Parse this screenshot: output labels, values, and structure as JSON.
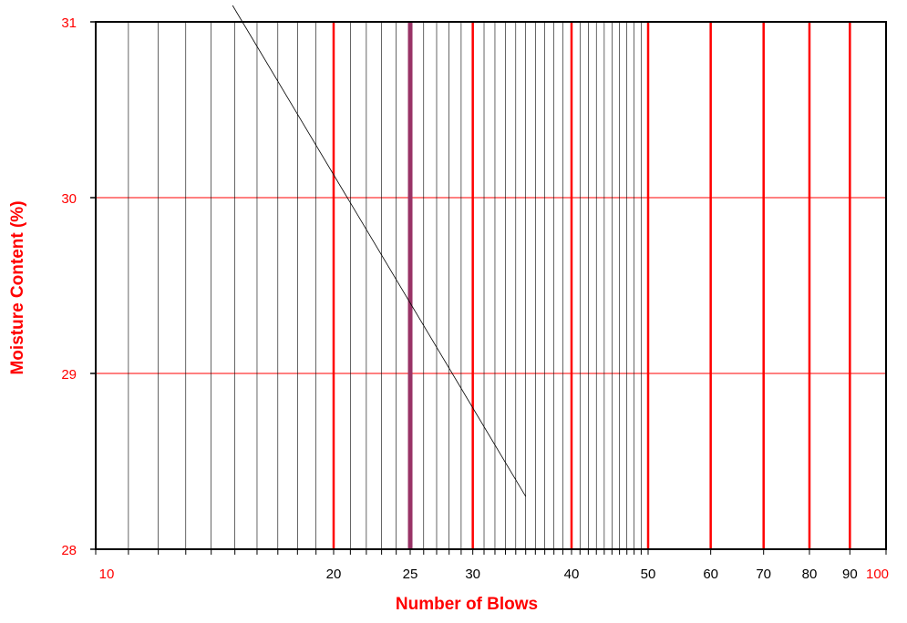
{
  "chart_data": {
    "type": "line",
    "xscale": "log",
    "xlim": [
      10,
      100
    ],
    "ylim": [
      28,
      31
    ],
    "xlabel": "Number of Blows",
    "ylabel": "Moisture Content (%)",
    "x_tick_labels": [
      {
        "value": 10,
        "label": "10",
        "color": "#ff0000"
      },
      {
        "value": 20,
        "label": "20",
        "color": "#000000"
      },
      {
        "value": 25,
        "label": "25",
        "color": "#000000"
      },
      {
        "value": 30,
        "label": "30",
        "color": "#000000"
      },
      {
        "value": 40,
        "label": "40",
        "color": "#000000"
      },
      {
        "value": 50,
        "label": "50",
        "color": "#000000"
      },
      {
        "value": 60,
        "label": "60",
        "color": "#000000"
      },
      {
        "value": 70,
        "label": "70",
        "color": "#000000"
      },
      {
        "value": 80,
        "label": "80",
        "color": "#000000"
      },
      {
        "value": 90,
        "label": "90",
        "color": "#000000"
      },
      {
        "value": 100,
        "label": "100",
        "color": "#ff0000"
      }
    ],
    "y_tick_labels": [
      {
        "value": 28,
        "label": "28"
      },
      {
        "value": 29,
        "label": "29"
      },
      {
        "value": 30,
        "label": "30"
      },
      {
        "value": 31,
        "label": "31"
      }
    ],
    "minor_gridlines_x": [
      11,
      12,
      13,
      14,
      15,
      16,
      17,
      18,
      19,
      21,
      22,
      23,
      24,
      26,
      27,
      28,
      29,
      31,
      32,
      33,
      34,
      35,
      36,
      37,
      38,
      39,
      41,
      42,
      43,
      44,
      45,
      46,
      47,
      48,
      49
    ],
    "major_gridlines_x": [
      20,
      30,
      40,
      50,
      60,
      70,
      80,
      90
    ],
    "highlight_x": 25,
    "gridlines_y": [
      29,
      30
    ],
    "series": [
      {
        "points": [
          [
            14.9,
            31.1
          ],
          [
            35,
            28.3
          ]
        ]
      }
    ],
    "colors": {
      "axis_text": "#ff0000",
      "tick_text": "#000000",
      "minor_grid": "#000000",
      "major_grid": "#ff0000",
      "highlight": "#993366",
      "series": "#000000"
    }
  }
}
